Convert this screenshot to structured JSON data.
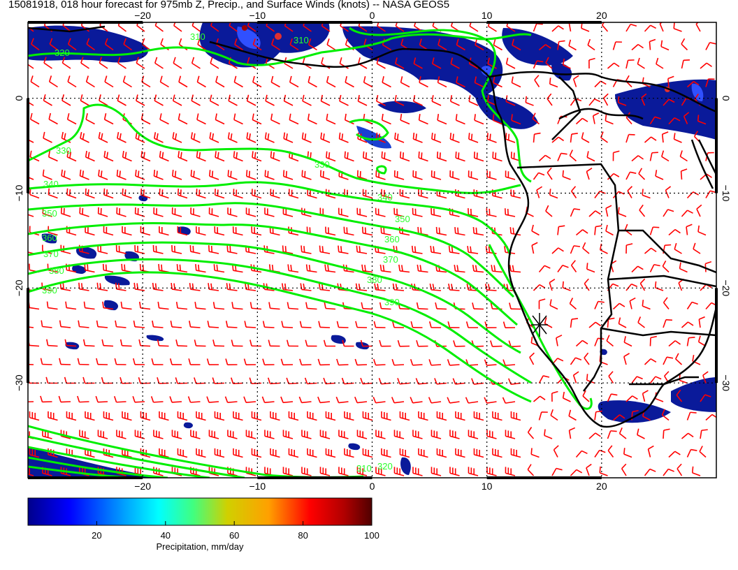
{
  "title": "15081918, 018 hour forecast for 975mb Z, Precip., and Surface Winds (knots) -- NASA GEOS5",
  "map": {
    "lon_range": [
      -30,
      30
    ],
    "lat_range": [
      -40,
      8
    ],
    "lon_ticks": [
      -20,
      -10,
      0,
      10,
      20
    ],
    "lat_ticks": [
      0,
      -10,
      -20,
      -30
    ],
    "lon_tick_labels": [
      "−20",
      "−10",
      "0",
      "10",
      "20"
    ],
    "lat_tick_labels": [
      "0",
      "−10",
      "−20",
      "−30"
    ],
    "gridlines": "dotted",
    "contour_color": "#00ee00",
    "wind_barb_color": "#ff0000",
    "coastline_color": "#000000",
    "contour_labels": [
      "310",
      "320",
      "330",
      "340",
      "350",
      "360",
      "370",
      "380",
      "390"
    ],
    "marker": "asterisk"
  },
  "colorbar": {
    "label": "Precipitation, mm/day",
    "ticks": [
      20,
      40,
      60,
      80,
      100
    ],
    "range": [
      0,
      100
    ],
    "colors": [
      "#00008b",
      "#0000ff",
      "#00a0ff",
      "#00ffff",
      "#00ff80",
      "#a0ff00",
      "#ffff00",
      "#ffa000",
      "#ff0000",
      "#a00000",
      "#500000"
    ]
  }
}
